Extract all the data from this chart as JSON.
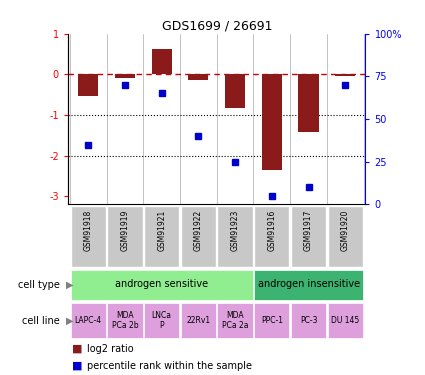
{
  "title": "GDS1699 / 26691",
  "samples": [
    "GSM91918",
    "GSM91919",
    "GSM91921",
    "GSM91922",
    "GSM91923",
    "GSM91916",
    "GSM91917",
    "GSM91920"
  ],
  "log2_ratio": [
    -0.52,
    -0.08,
    0.62,
    -0.14,
    -0.82,
    -2.35,
    -1.42,
    -0.03
  ],
  "percentile_rank": [
    35,
    70,
    65,
    40,
    25,
    5,
    10,
    70
  ],
  "bar_color": "#8B1A1A",
  "dot_color": "#0000CC",
  "dashed_color": "#CC0000",
  "ylim_left": [
    -3.2,
    1.0
  ],
  "ylim_right": [
    0,
    100
  ],
  "cell_type_groups": [
    {
      "label": "androgen sensitive",
      "start": 0,
      "end": 4,
      "color": "#90EE90"
    },
    {
      "label": "androgen insensitive",
      "start": 5,
      "end": 7,
      "color": "#3CB371"
    }
  ],
  "cell_lines": [
    {
      "label": "LAPC-4",
      "start": 0,
      "end": 0
    },
    {
      "label": "MDA\nPCa 2b",
      "start": 1,
      "end": 1
    },
    {
      "label": "LNCa\nP",
      "start": 2,
      "end": 2
    },
    {
      "label": "22Rv1",
      "start": 3,
      "end": 3
    },
    {
      "label": "MDA\nPCa 2a",
      "start": 4,
      "end": 4
    },
    {
      "label": "PPC-1",
      "start": 5,
      "end": 5
    },
    {
      "label": "PC-3",
      "start": 6,
      "end": 6
    },
    {
      "label": "DU 145",
      "start": 7,
      "end": 7
    }
  ],
  "cell_line_color": "#DDA0DD",
  "gsm_bg_color": "#C8C8C8",
  "legend_log2": "log2 ratio",
  "legend_pct": "percentile rank within the sample",
  "right_yticks": [
    0,
    25,
    50,
    75,
    100
  ],
  "right_yticklabels": [
    "0",
    "25",
    "50",
    "75",
    "100%"
  ],
  "left_yticks": [
    -3,
    -2,
    -1,
    0,
    1
  ],
  "left_yticklabels": [
    "-3",
    "-2",
    "-1",
    "0",
    "1"
  ]
}
